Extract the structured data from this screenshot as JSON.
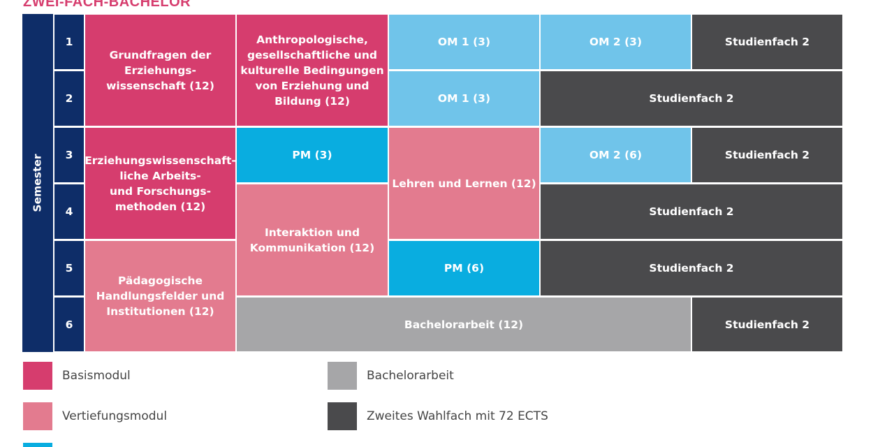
{
  "title": "ZWEI-FACH-BACHELOR",
  "semester_label": "Semester",
  "semesters": [
    "1",
    "2",
    "3",
    "4",
    "5",
    "6"
  ],
  "modules": {
    "grundfragen": "Grundfragen der\nErziehungs-\nwissenschaft (12)",
    "anthropologische": "Anthropologische,\ngesellschaftliche und\nkulturelle Bedingungen\nvon Erziehung und\nBildung (12)",
    "om1_s1": "OM 1 (3)",
    "om2_s1": "OM 2 (3)",
    "studienfach_s1": "Studienfach 2",
    "om1_s2": "OM 1 (3)",
    "studienfach_s2": "Studienfach 2",
    "methoden": "Erziehungswissenschaft-\nliche Arbeits-\nund Forschungs-\nmethoden (12)",
    "pm3": "PM (3)",
    "lehren": "Lehren und Lernen (12)",
    "om2_s3": "OM 2 (6)",
    "studienfach_s3": "Studienfach 2",
    "interaktion": "Interaktion und\nKommunikation (12)",
    "studienfach_s4": "Studienfach 2",
    "handlungsfelder": "Pädagogische\nHandlungsfelder und\nInstitutionen (12)",
    "pm6": "PM (6)",
    "studienfach_s5": "Studienfach 2",
    "bachelorarbeit": "Bachelorarbeit (12)",
    "studienfach_s6": "Studienfach 2"
  },
  "legend": {
    "basismodul": "Basismodul",
    "vertiefungsmodul": "Vertiefungsmodul",
    "bachelorarbeit": "Bachelorarbeit",
    "zweites_wahlfach": "Zweites Wahlfach mit 72 ECTS"
  },
  "colors": {
    "title": "#d63d6e",
    "navy": "#0e2d68",
    "basis": "#d63d6e",
    "vertiefung": "#e37b8f",
    "pm": "#09ade0",
    "om": "#70c4ea",
    "grey": "#a6a6a8",
    "dark": "#4a4a4c"
  }
}
